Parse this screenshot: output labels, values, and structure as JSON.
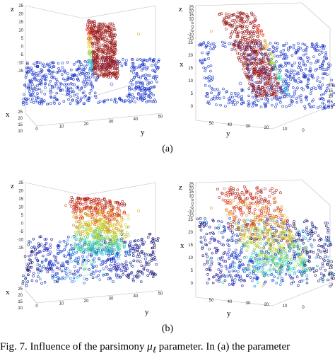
{
  "figure": {
    "sublabels": [
      "(a)",
      "(b)"
    ],
    "caption": {
      "prefix": "Fig. 7.  Influence of the parsimony ",
      "symbol": "μ",
      "subscript": "ℓ",
      "suffix": "  parameter. In (a) the parameter"
    }
  },
  "chart_data": [
    {
      "type": "scatter",
      "panel": "(a) left",
      "axis_labels": {
        "z": "z",
        "x": "x",
        "y": "y"
      },
      "z_ticks": [
        "25",
        "20",
        "15",
        "10",
        "5",
        "0",
        "-5",
        "-10",
        "-15"
      ],
      "x_ticks": [
        "25",
        "20",
        "15",
        "10"
      ],
      "y_ticks": [
        "0",
        "10",
        "20",
        "30",
        "40",
        "50"
      ],
      "colormap": "jet",
      "series_colors": {
        "low": "#1733c8",
        "high": "#9a1a1a"
      }
    },
    {
      "type": "scatter",
      "panel": "(a) right",
      "axis_labels": {
        "z": "z",
        "x": "x",
        "y": "y"
      },
      "z_ticks": [
        "25",
        "20",
        "15",
        "10",
        "5",
        "0",
        "-5",
        "-10",
        "-15"
      ],
      "x_ticks": [
        "25",
        "20",
        "15",
        "10",
        "5",
        "0"
      ],
      "y_ticks": [
        "50",
        "40",
        "30",
        "20",
        "10",
        "0"
      ],
      "colormap": "jet",
      "series_colors": {
        "low": "#1733c8",
        "high": "#9a1a1a"
      }
    },
    {
      "type": "scatter",
      "panel": "(b) left",
      "axis_labels": {
        "z": "z",
        "x": "x",
        "y": "y"
      },
      "z_ticks": [
        "25",
        "20",
        "15",
        "10",
        "5",
        "0",
        "-5",
        "-10",
        "-15"
      ],
      "x_ticks": [
        "25",
        "20",
        "15",
        "10"
      ],
      "y_ticks": [
        "0",
        "10",
        "20",
        "30",
        "40",
        "50"
      ],
      "colormap": "jet",
      "series_colors": {
        "low": "#1733c8",
        "high": "#9a1a1a"
      }
    },
    {
      "type": "scatter",
      "panel": "(b) right",
      "axis_labels": {
        "z": "z",
        "x": "x",
        "y": "y"
      },
      "z_ticks": [
        "25",
        "20",
        "15",
        "10",
        "5",
        "0",
        "-5",
        "-10",
        "-15"
      ],
      "x_ticks": [
        "25",
        "20",
        "15",
        "10",
        "5",
        "0"
      ],
      "y_ticks": [
        "50",
        "40",
        "30",
        "20",
        "10",
        "0"
      ],
      "colormap": "jet",
      "series_colors": {
        "low": "#1733c8",
        "high": "#9a1a1a"
      }
    }
  ]
}
